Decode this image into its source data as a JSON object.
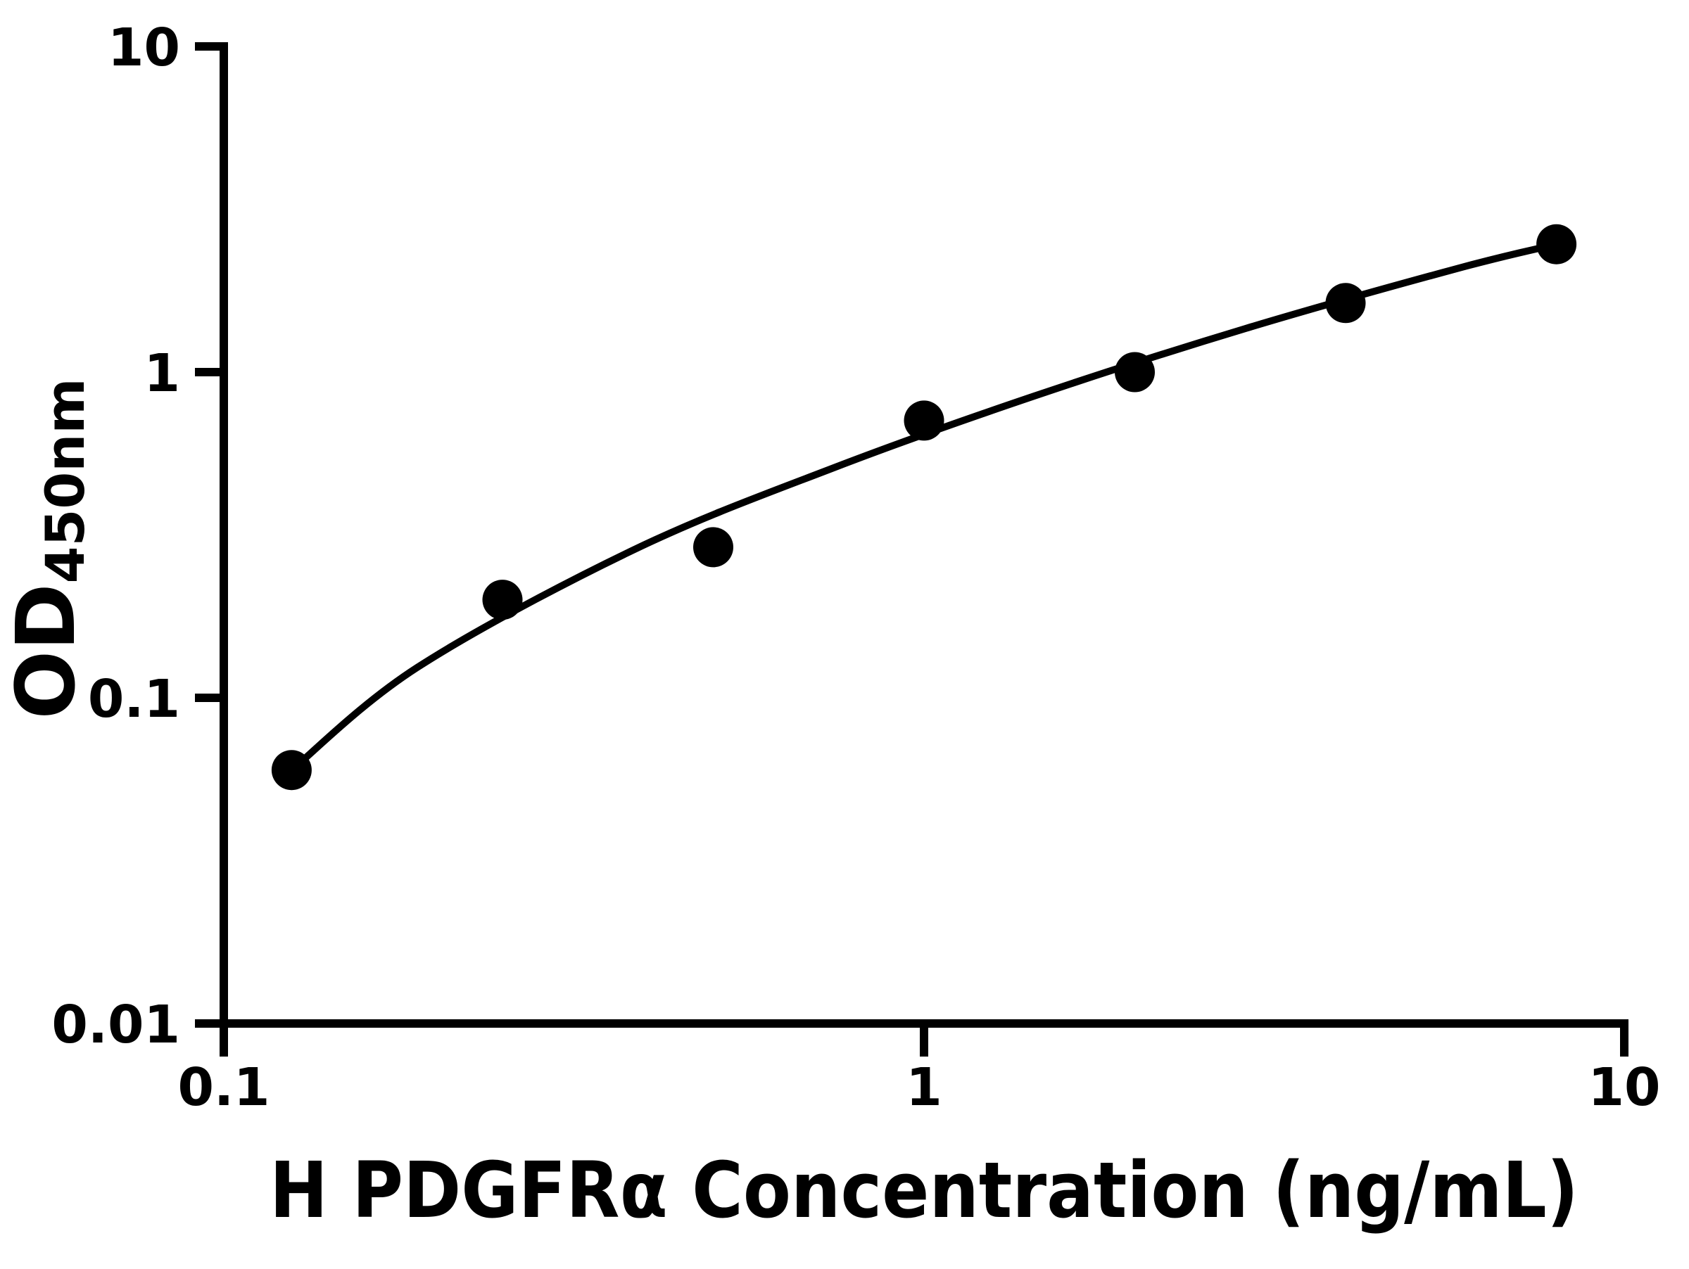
{
  "figure": {
    "background_color": "#ffffff",
    "ink_color": "#000000"
  },
  "chart_data": {
    "type": "scatter",
    "title": "",
    "xlabel": "H PDGFRα Concentration (ng/mL)",
    "ylabel_main": "OD",
    "ylabel_subscript": "450nm",
    "x_scale": "log",
    "y_scale": "log",
    "xlim": [
      0.1,
      10
    ],
    "ylim": [
      0.01,
      10
    ],
    "grid": false,
    "legend": false,
    "x_ticks": [
      {
        "value": 0.1,
        "label": "0.1"
      },
      {
        "value": 1,
        "label": "1"
      },
      {
        "value": 10,
        "label": "10"
      }
    ],
    "y_ticks": [
      {
        "value": 0.01,
        "label": "0.01"
      },
      {
        "value": 0.1,
        "label": "0.1"
      },
      {
        "value": 1,
        "label": "1"
      },
      {
        "value": 10,
        "label": "10"
      }
    ],
    "series": [
      {
        "name": "standard-curve-points",
        "marker": "filled-circle",
        "color": "#000000",
        "points": [
          {
            "x": 0.125,
            "y": 0.06
          },
          {
            "x": 0.25,
            "y": 0.2
          },
          {
            "x": 0.5,
            "y": 0.29
          },
          {
            "x": 1,
            "y": 0.71
          },
          {
            "x": 2,
            "y": 1.0
          },
          {
            "x": 4,
            "y": 1.63
          },
          {
            "x": 8,
            "y": 2.47
          }
        ]
      }
    ],
    "fit_curve": {
      "name": "four-parameter-fit",
      "color": "#000000",
      "x": [
        0.125,
        0.189,
        0.384,
        0.735,
        1.438,
        2.879,
        5.765,
        8.0
      ],
      "y": [
        0.06,
        0.124,
        0.284,
        0.504,
        0.845,
        1.361,
        2.078,
        2.47
      ]
    }
  }
}
